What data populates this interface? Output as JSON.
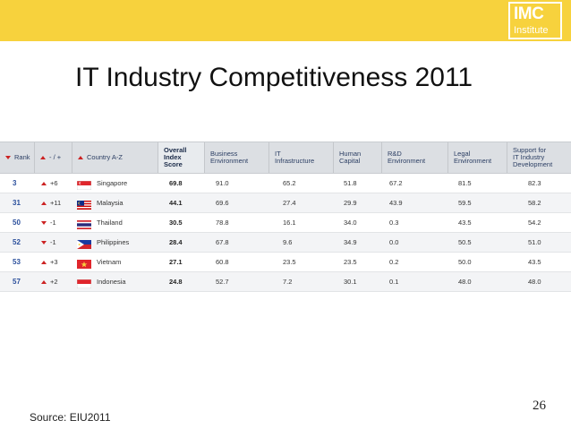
{
  "brand": {
    "logo_main": "IMC",
    "logo_sub": "Institute",
    "bar_color": "#f7d23d"
  },
  "slide": {
    "title": "IT Industry Competitiveness 2011",
    "source": "Source:  EIU2011",
    "page_number": "26"
  },
  "table": {
    "headers": {
      "rank": "Rank",
      "change": "- / +",
      "country": "Country A-Z",
      "overall": [
        "Overall",
        "Index",
        "Score"
      ],
      "business": [
        "Business",
        "Environment"
      ],
      "infra": [
        "IT",
        "Infrastructure"
      ],
      "human": [
        "Human",
        "Capital"
      ],
      "rnd": [
        "R&D",
        "Environment"
      ],
      "legal": [
        "Legal",
        "Environment"
      ],
      "support": [
        "Support for",
        "IT Industry",
        "Development"
      ]
    },
    "rows": [
      {
        "rank": "3",
        "dir": "up",
        "change": "+6",
        "country": "Singapore",
        "flag": "singapore",
        "overall": "69.8",
        "business": "91.0",
        "infra": "65.2",
        "human": "51.8",
        "rnd": "67.2",
        "legal": "81.5",
        "support": "82.3"
      },
      {
        "rank": "31",
        "dir": "up",
        "change": "+11",
        "country": "Malaysia",
        "flag": "malaysia",
        "overall": "44.1",
        "business": "69.6",
        "infra": "27.4",
        "human": "29.9",
        "rnd": "43.9",
        "legal": "59.5",
        "support": "58.2"
      },
      {
        "rank": "50",
        "dir": "down",
        "change": "-1",
        "country": "Thailand",
        "flag": "thailand",
        "overall": "30.5",
        "business": "78.8",
        "infra": "16.1",
        "human": "34.0",
        "rnd": "0.3",
        "legal": "43.5",
        "support": "54.2"
      },
      {
        "rank": "52",
        "dir": "down",
        "change": "-1",
        "country": "Philippines",
        "flag": "philippines",
        "overall": "28.4",
        "business": "67.8",
        "infra": "9.6",
        "human": "34.9",
        "rnd": "0.0",
        "legal": "50.5",
        "support": "51.0"
      },
      {
        "rank": "53",
        "dir": "up",
        "change": "+3",
        "country": "Vietnam",
        "flag": "vietnam",
        "overall": "27.1",
        "business": "60.8",
        "infra": "23.5",
        "human": "23.5",
        "rnd": "0.2",
        "legal": "50.0",
        "support": "43.5"
      },
      {
        "rank": "57",
        "dir": "up",
        "change": "+2",
        "country": "Indonesia",
        "flag": "indonesia",
        "overall": "24.8",
        "business": "52.7",
        "infra": "7.2",
        "human": "30.1",
        "rnd": "0.1",
        "legal": "48.0",
        "support": "48.0"
      }
    ]
  }
}
